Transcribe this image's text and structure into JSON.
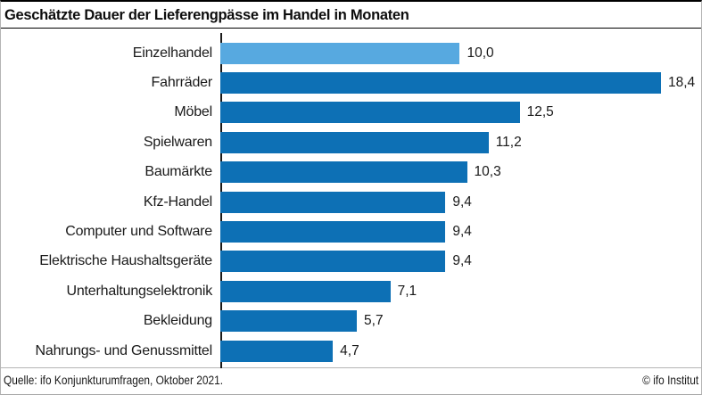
{
  "title": "Geschätzte Dauer der Lieferengpässe im Handel in Monaten",
  "footer": {
    "source": "Quelle: ifo Konjunkturumfragen, Oktober 2021.",
    "copyright": "© ifo Institut"
  },
  "colors": {
    "bar": "#0d70b5",
    "highlight_bar": "#57a9e0",
    "axis": "#1a1a1a",
    "text": "#1a1a1a"
  },
  "chart_data": {
    "type": "bar",
    "orientation": "horizontal",
    "title": "Geschätzte Dauer der Lieferengpässe im Handel in Monaten",
    "xlabel": "",
    "ylabel": "",
    "xlim": [
      0,
      18.4
    ],
    "grid": false,
    "legend": false,
    "unit": "Monate",
    "highlight_index": 0,
    "categories": [
      "Einzelhandel",
      "Fahrräder",
      "Möbel",
      "Spielwaren",
      "Baumärkte",
      "Kfz-Handel",
      "Computer und Software",
      "Elektrische Haushaltsgeräte",
      "Unterhaltungselektronik",
      "Bekleidung",
      "Nahrungs- und Genussmittel"
    ],
    "values": [
      10.0,
      18.4,
      12.5,
      11.2,
      10.3,
      9.4,
      9.4,
      9.4,
      7.1,
      5.7,
      4.7
    ],
    "value_labels": [
      "10,0",
      "18,4",
      "12,5",
      "11,2",
      "10,3",
      "9,4",
      "9,4",
      "9,4",
      "7,1",
      "5,7",
      "4,7"
    ]
  }
}
